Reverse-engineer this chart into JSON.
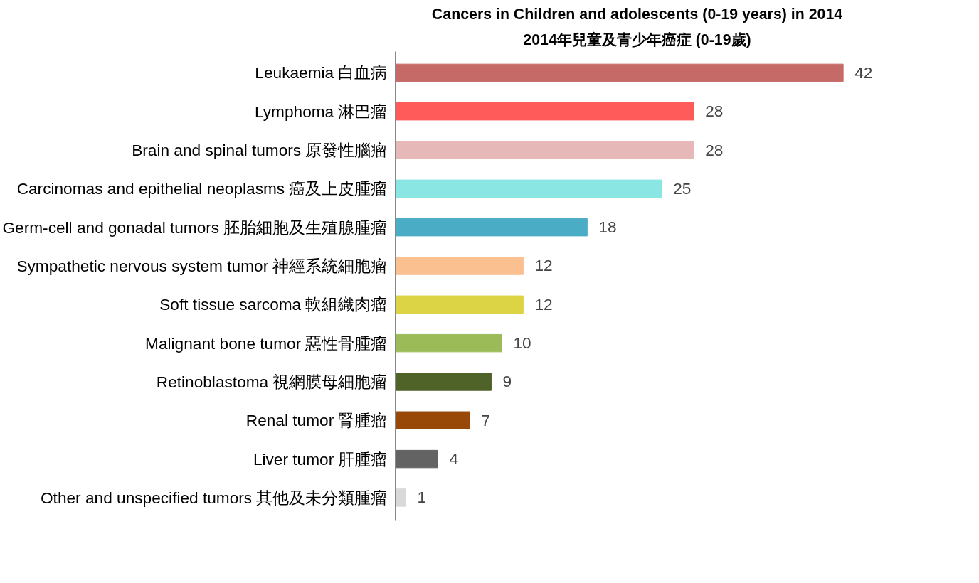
{
  "chart_data": {
    "type": "bar",
    "orientation": "horizontal",
    "title": "Cancers in Children and adolescents (0-19 years) in 2014",
    "subtitle": "2014年兒童及青少年癌症 (0-19歲)",
    "categories": [
      "Leukaemia 白血病",
      "Lymphoma 淋巴瘤",
      "Brain and spinal tumors 原發性腦瘤",
      "Carcinomas and epithelial neoplasms 癌及上皮腫瘤",
      "Germ-cell and gonadal tumors 胚胎細胞及生殖腺腫瘤",
      "Sympathetic nervous system tumor 神經系統細胞瘤",
      "Soft tissue sarcoma 軟組織肉瘤",
      "Malignant bone tumor 惡性骨腫瘤",
      "Retinoblastoma 視網膜母細胞瘤",
      "Renal tumor 腎腫瘤",
      "Liver tumor 肝腫瘤",
      "Other and unspecified tumors 其他及未分類腫瘤"
    ],
    "values": [
      42,
      28,
      28,
      25,
      18,
      12,
      12,
      10,
      9,
      7,
      4,
      1
    ],
    "colors": [
      "#c66a67",
      "#ff5b5b",
      "#e6b9b8",
      "#8ae6e2",
      "#4bacc6",
      "#fac08f",
      "#dcd444",
      "#9bbb59",
      "#4f6228",
      "#984807",
      "#636363",
      "#d9d9d9"
    ],
    "data_labels": true,
    "grid": false,
    "tick_labels": "y"
  }
}
